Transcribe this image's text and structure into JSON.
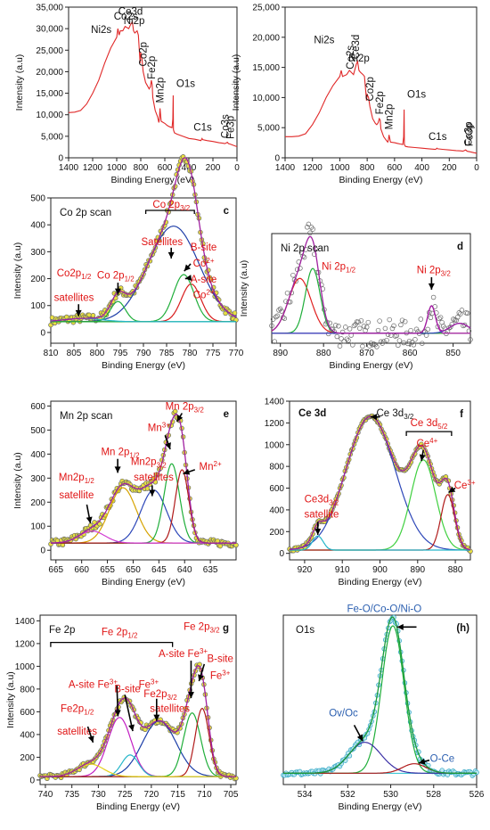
{
  "chart_data": [
    {
      "type": "line",
      "panel_label": "",
      "xlabel": "Binding Energy (eV)",
      "ylabel": "Intensity (a.u)",
      "xlim": [
        1400,
        0
      ],
      "ylim": [
        0,
        35000
      ],
      "xticks": [
        1400,
        1200,
        1000,
        800,
        600,
        400,
        200,
        0
      ],
      "yticks": [
        0,
        5000,
        10000,
        15000,
        20000,
        25000,
        30000,
        35000
      ],
      "yticklabels": [
        "0",
        "5,000",
        "10,000",
        "15,000",
        "20,000",
        "25,000",
        "30,000",
        "35,000"
      ],
      "series": [
        {
          "x": [
            1400,
            1350,
            1300,
            1250,
            1200,
            1150,
            1100,
            1050,
            1000,
            990,
            980,
            970,
            950,
            930,
            900,
            880,
            870,
            860,
            850,
            830,
            820,
            805,
            800,
            790,
            780,
            760,
            740,
            730,
            720,
            712,
            705,
            700,
            680,
            660,
            650,
            645,
            640,
            630,
            600,
            580,
            560,
            540,
            533,
            530,
            528,
            520,
            500,
            450,
            400,
            350,
            300,
            290,
            285,
            250,
            200,
            150,
            120,
            100,
            80,
            70,
            60,
            50,
            40,
            30,
            20,
            10,
            0
          ],
          "y": [
            10500,
            10600,
            11000,
            12500,
            15000,
            18000,
            22000,
            25500,
            28000,
            30000,
            28500,
            29500,
            29500,
            30500,
            30000,
            31200,
            31500,
            29500,
            29000,
            29500,
            28500,
            22000,
            24500,
            23000,
            20000,
            17500,
            16500,
            16000,
            16500,
            18000,
            17000,
            14000,
            11000,
            9500,
            8200,
            9000,
            11500,
            8500,
            8000,
            7500,
            7200,
            7000,
            9000,
            14500,
            6500,
            5800,
            5500,
            5000,
            4500,
            4300,
            4000,
            4500,
            4200,
            4000,
            3800,
            3500,
            3400,
            3300,
            3600,
            3300,
            3200,
            3100,
            3000,
            2900,
            2800,
            2700,
            2600
          ]
        }
      ],
      "annotations": [
        {
          "text": "Co2s",
          "x": 925
        },
        {
          "text": "Ni2s",
          "x": 1010
        },
        {
          "text": "Ce3d",
          "x": 885
        },
        {
          "text": "Ni2p",
          "x": 855
        },
        {
          "text": "Co2p",
          "x": 780
        },
        {
          "text": "Fe2p",
          "x": 710
        },
        {
          "text": "Mn2p",
          "x": 642
        },
        {
          "text": "O1s",
          "x": 530
        },
        {
          "text": "C1s",
          "x": 285
        },
        {
          "text": "Co3s",
          "x": 100
        },
        {
          "text": "Fe3p",
          "x": 55
        }
      ]
    },
    {
      "type": "line",
      "panel_label": "",
      "xlabel": "Binding Energy (eV)",
      "ylabel": "Intensity (a.u)",
      "xlim": [
        1400,
        0
      ],
      "ylim": [
        0,
        25000
      ],
      "xticks": [
        1400,
        1200,
        1000,
        800,
        600,
        400,
        200,
        0
      ],
      "yticks": [
        0,
        5000,
        10000,
        15000,
        20000,
        25000
      ],
      "yticklabels": [
        "0",
        "5,000",
        "10,000",
        "15,000",
        "20,000",
        "25,000"
      ],
      "series": [
        {
          "x": [
            1400,
            1350,
            1300,
            1250,
            1200,
            1150,
            1100,
            1050,
            1000,
            990,
            980,
            950,
            930,
            900,
            880,
            870,
            860,
            850,
            830,
            820,
            805,
            800,
            790,
            780,
            760,
            740,
            730,
            720,
            712,
            705,
            700,
            680,
            660,
            650,
            645,
            640,
            630,
            600,
            580,
            560,
            540,
            533,
            530,
            528,
            520,
            500,
            450,
            400,
            350,
            300,
            290,
            285,
            250,
            200,
            150,
            120,
            100,
            80,
            70,
            60,
            50,
            40,
            30,
            20,
            10,
            0
          ],
          "y": [
            3500,
            3500,
            3600,
            4000,
            5500,
            7500,
            10000,
            12000,
            13500,
            14500,
            13500,
            13800,
            14500,
            13800,
            15500,
            16000,
            14500,
            14200,
            13800,
            13500,
            9500,
            10500,
            10000,
            8500,
            6500,
            5700,
            5500,
            5800,
            6500,
            6300,
            4800,
            3500,
            2900,
            2600,
            2900,
            3800,
            2600,
            2500,
            2400,
            2300,
            2200,
            3500,
            8000,
            2200,
            1900,
            1800,
            1700,
            1600,
            1500,
            1400,
            1600,
            1500,
            1400,
            1300,
            1200,
            1150,
            1100,
            1300,
            1100,
            1050,
            1000,
            950,
            900,
            850,
            800,
            750
          ]
        }
      ],
      "annotations": [
        {
          "text": "Co2s",
          "x": 925
        },
        {
          "text": "Ni2s",
          "x": 1010
        },
        {
          "text": "Ce3d",
          "x": 885
        },
        {
          "text": "Ni2p",
          "x": 860
        },
        {
          "text": "Co2p",
          "x": 780
        },
        {
          "text": "Fe2p",
          "x": 710
        },
        {
          "text": "Mn2p",
          "x": 642
        },
        {
          "text": "O1s",
          "x": 530
        },
        {
          "text": "C1s",
          "x": 285
        },
        {
          "text": "Co3p",
          "x": 62
        },
        {
          "text": "Fe3p",
          "x": 55
        }
      ]
    },
    {
      "type": "scatter",
      "panel_label": "c",
      "xlabel": "Binding Energy (eV)",
      "ylabel": "Intensity (a.u)",
      "xlim": [
        810,
        770
      ],
      "ylim": [
        -40,
        500
      ],
      "xticks": [
        810,
        805,
        800,
        795,
        790,
        785,
        780,
        775,
        770
      ],
      "yticks": [
        0,
        100,
        200,
        300,
        400,
        500
      ],
      "scan": "Co 2p scan",
      "peaks": [
        {
          "color": "#1f3ea8",
          "c": 783.5,
          "a": 355,
          "w": 5.5
        },
        {
          "color": "#d81b1b",
          "c": 779.7,
          "a": 140,
          "w": 2.1
        },
        {
          "color": "#1fae3a",
          "c": 781.3,
          "a": 175,
          "w": 2.2
        },
        {
          "color": "#1fae3a",
          "c": 795.5,
          "a": 75,
          "w": 1.6
        },
        {
          "color": "#25b6c9",
          "c": 803,
          "a": 12,
          "w": 4
        }
      ],
      "baseline": 40,
      "labels": [
        "Co 2p3/2",
        "Satellites",
        "B-site",
        "Co2+",
        "A-site",
        "Co2+",
        "Co 2p1/2",
        "Co2p1/2",
        "satellites"
      ]
    },
    {
      "type": "scatter",
      "panel_label": "d",
      "xlabel": "Binding Energy (eV)",
      "ylabel": "Intensity (a.u)",
      "xlim": [
        892,
        846
      ],
      "xticks": [
        890,
        880,
        870,
        860,
        850
      ],
      "scan": "Ni 2p scan",
      "peaks": [
        {
          "color": "#e02020",
          "c": 885.5,
          "a": 220,
          "w": 2.6
        },
        {
          "color": "#1fae3a",
          "c": 882.5,
          "a": 260,
          "w": 1.7
        },
        {
          "color": "#c21ec2",
          "c": 855,
          "a": 110,
          "w": 0.9
        },
        {
          "color": "#2c46b8",
          "c": 848.5,
          "a": 40,
          "w": 2.2
        }
      ],
      "labels": [
        "Ni 2p1/2",
        "Ni 2p3/2"
      ]
    },
    {
      "type": "scatter",
      "panel_label": "e",
      "xlabel": "Binding Energy (eV)",
      "ylabel": "Intensity (a.u)",
      "xlim": [
        666,
        630
      ],
      "ylim": [
        -40,
        620
      ],
      "xticks": [
        665,
        660,
        655,
        650,
        645,
        640,
        635
      ],
      "yticks": [
        0,
        100,
        200,
        300,
        400,
        500,
        600
      ],
      "scan": "Mn 2p scan",
      "peaks": [
        {
          "color": "#d6a300",
          "c": 652,
          "a": 230,
          "w": 2.6
        },
        {
          "color": "#2c46b8",
          "c": 646,
          "a": 220,
          "w": 2.5
        },
        {
          "color": "#1fae3a",
          "c": 642.5,
          "a": 330,
          "w": 1.5
        },
        {
          "color": "#b01a1a",
          "c": 640.5,
          "a": 305,
          "w": 1.3
        },
        {
          "color": "#d13bd1",
          "c": 658,
          "a": 50,
          "w": 2.5
        }
      ],
      "baseline": 30,
      "labels": [
        "Mn 2p3/2",
        "Mn3+",
        "Mn2+",
        "Mn 2p1/2",
        "Mn2p3/2",
        "satellites",
        "Mn2p1/2",
        "satellite"
      ]
    },
    {
      "type": "scatter",
      "panel_label": "f",
      "xlabel": "Binding Energy (eV)",
      "ylabel": "",
      "xlim": [
        924,
        876
      ],
      "ylim": [
        -60,
        1400
      ],
      "xticks": [
        920,
        910,
        900,
        890,
        880
      ],
      "yticks": [
        0,
        200,
        400,
        600,
        800,
        1000,
        1200,
        1400
      ],
      "scan": "Ce 3d",
      "peaks": [
        {
          "color": "#2c46b8",
          "c": 902.5,
          "a": 1230,
          "w": 6.5
        },
        {
          "color": "#3fd03f",
          "c": 888.5,
          "a": 830,
          "w": 3.3
        },
        {
          "color": "#b01a1a",
          "c": 882,
          "a": 510,
          "w": 1.8
        },
        {
          "color": "#25b6c9",
          "c": 916.5,
          "a": 130,
          "w": 1.4
        }
      ],
      "baseline": 30,
      "labels": [
        "Ce 3d3/2",
        "Ce 3d5/2",
        "Ce4+",
        "Ce3+",
        "Ce3d3/2",
        "satellite"
      ]
    },
    {
      "type": "scatter",
      "panel_label": "g",
      "xlabel": "Binding Energy (eV)",
      "ylabel": "Intensity (a.u)",
      "xlim": [
        741,
        704
      ],
      "ylim": [
        -40,
        1450
      ],
      "xticks": [
        740,
        735,
        730,
        725,
        720,
        715,
        710,
        705
      ],
      "yticks": [
        0,
        200,
        400,
        600,
        800,
        1000,
        1200,
        1400
      ],
      "scan": "Fe 2p",
      "peaks": [
        {
          "color": "#1c3ea8",
          "c": 718.5,
          "a": 490,
          "w": 3.2
        },
        {
          "color": "#c21ec2",
          "c": 726,
          "a": 520,
          "w": 2.2
        },
        {
          "color": "#25b6c9",
          "c": 724,
          "a": 190,
          "w": 1.6
        },
        {
          "color": "#1fae3a",
          "c": 712.3,
          "a": 560,
          "w": 1.6
        },
        {
          "color": "#b01a1a",
          "c": 710.4,
          "a": 600,
          "w": 1.3
        },
        {
          "color": "#e6cf1a",
          "c": 731.5,
          "a": 110,
          "w": 2.5
        }
      ],
      "baseline": 30,
      "labels": [
        "Fe 2p1/2",
        "Fe 2p3/2",
        "A-site Fe3+",
        "B-site",
        "Fe3+",
        "B-site Fe3+",
        "A-site Fe3+",
        "Fe2p3/2",
        "satellites",
        "Fe2p1/2",
        "satellites"
      ]
    },
    {
      "type": "scatter",
      "panel_label": "(h)",
      "xlabel": "Binding Energy (eV)",
      "ylabel": "",
      "xlim": [
        535,
        526
      ],
      "xticks": [
        534,
        532,
        530,
        528,
        526
      ],
      "scan": "O1s",
      "peaks": [
        {
          "color": "#1fae3a",
          "c": 529.9,
          "a": 2480,
          "w": 0.52
        },
        {
          "color": "#3a2fa5",
          "c": 531.2,
          "a": 520,
          "w": 0.75
        },
        {
          "color": "#b01a1a",
          "c": 528.9,
          "a": 160,
          "w": 0.55
        }
      ],
      "baseline": 40,
      "labels": [
        "Fe-O/Co-O/Ni-O",
        "Ov/Oc",
        "O-Ce"
      ]
    }
  ]
}
